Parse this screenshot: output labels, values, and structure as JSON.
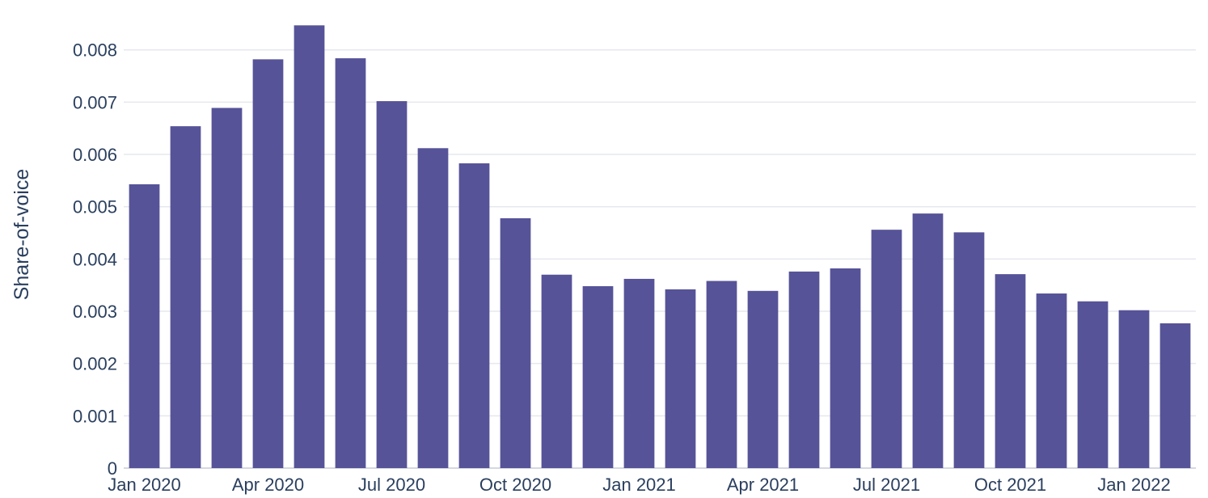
{
  "chart_data": {
    "type": "bar",
    "x": [
      "2020-01",
      "2020-02",
      "2020-03",
      "2020-04",
      "2020-05",
      "2020-06",
      "2020-07",
      "2020-08",
      "2020-09",
      "2020-10",
      "2020-11",
      "2020-12",
      "2021-01",
      "2021-02",
      "2021-03",
      "2021-04",
      "2021-05",
      "2021-06",
      "2021-07",
      "2021-08",
      "2021-09",
      "2021-10",
      "2021-11",
      "2021-12",
      "2022-01",
      "2022-02"
    ],
    "values": [
      0.00543,
      0.00654,
      0.00689,
      0.00782,
      0.00847,
      0.00784,
      0.00702,
      0.00612,
      0.00583,
      0.00478,
      0.0037,
      0.00348,
      0.00362,
      0.00342,
      0.00358,
      0.00339,
      0.00376,
      0.00382,
      0.00456,
      0.00487,
      0.00451,
      0.00371,
      0.00334,
      0.00319,
      0.00302,
      0.00277
    ],
    "xlabel": "",
    "ylabel": "Share-of-voice",
    "ylim": [
      0,
      0.0088
    ],
    "yticks": [
      0,
      0.001,
      0.002,
      0.003,
      0.004,
      0.005,
      0.006,
      0.007,
      0.008
    ],
    "ytick_labels": [
      "0",
      "0.001",
      "0.002",
      "0.003",
      "0.004",
      "0.005",
      "0.006",
      "0.007",
      "0.008"
    ],
    "xticks": [
      "2020-01",
      "2020-04",
      "2020-07",
      "2020-10",
      "2021-01",
      "2021-04",
      "2021-07",
      "2021-10",
      "2022-01"
    ],
    "xtick_labels": [
      "Jan 2020",
      "Apr 2020",
      "Jul 2020",
      "Oct 2020",
      "Jan 2021",
      "Apr 2021",
      "Jul 2021",
      "Oct 2021",
      "Jan 2022"
    ],
    "grid": true,
    "legend": "none",
    "bar_color": "#565398"
  }
}
